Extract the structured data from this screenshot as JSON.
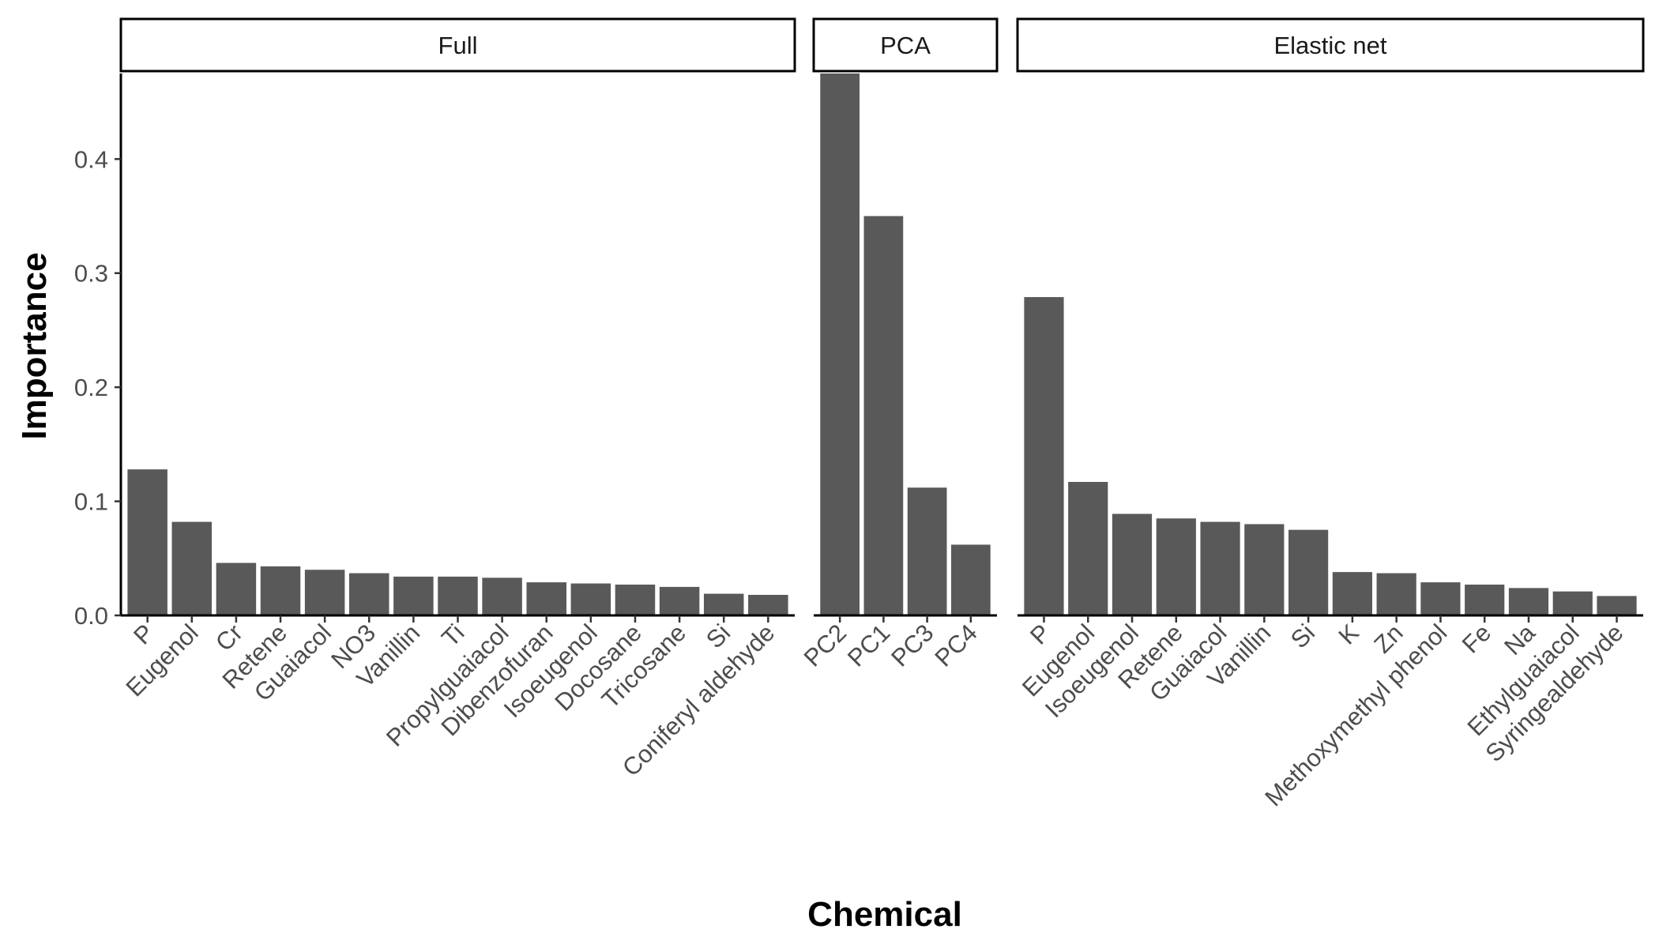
{
  "chart_data": {
    "type": "bar",
    "xlabel": "Chemical",
    "ylabel": "Importance",
    "ylim": [
      0,
      0.475
    ],
    "yticks": [
      0.0,
      0.1,
      0.2,
      0.3,
      0.4
    ],
    "ytick_labels": [
      "0.0",
      "0.1",
      "0.2",
      "0.3",
      "0.4"
    ],
    "bar_color": "#595959",
    "grid": false,
    "panels": [
      {
        "name": "Full",
        "categories": [
          "P",
          "Eugenol",
          "Cr",
          "Retene",
          "Guaiacol",
          "NO3",
          "Vanillin",
          "Ti",
          "Propylguaiacol",
          "Dibenzofuran",
          "Isoeugenol",
          "Docosane",
          "Tricosane",
          "Si",
          "Coniferyl aldehyde"
        ],
        "values": [
          0.128,
          0.082,
          0.046,
          0.043,
          0.04,
          0.037,
          0.034,
          0.034,
          0.033,
          0.029,
          0.028,
          0.027,
          0.025,
          0.019,
          0.018
        ]
      },
      {
        "name": "PCA",
        "categories": [
          "PC2",
          "PC1",
          "PC3",
          "PC4"
        ],
        "values": [
          0.48,
          0.35,
          0.112,
          0.062
        ]
      },
      {
        "name": "Elastic net",
        "categories": [
          "P",
          "Eugenol",
          "Isoeugenol",
          "Retene",
          "Guaiacol",
          "Vanillin",
          "Si",
          "K",
          "Zn",
          "Methoxymethyl phenol",
          "Fe",
          "Na",
          "Ethylguaiacol",
          "Syringealdehyde"
        ],
        "values": [
          0.279,
          0.117,
          0.089,
          0.085,
          0.082,
          0.08,
          0.075,
          0.038,
          0.037,
          0.029,
          0.027,
          0.024,
          0.021,
          0.017
        ]
      }
    ]
  }
}
